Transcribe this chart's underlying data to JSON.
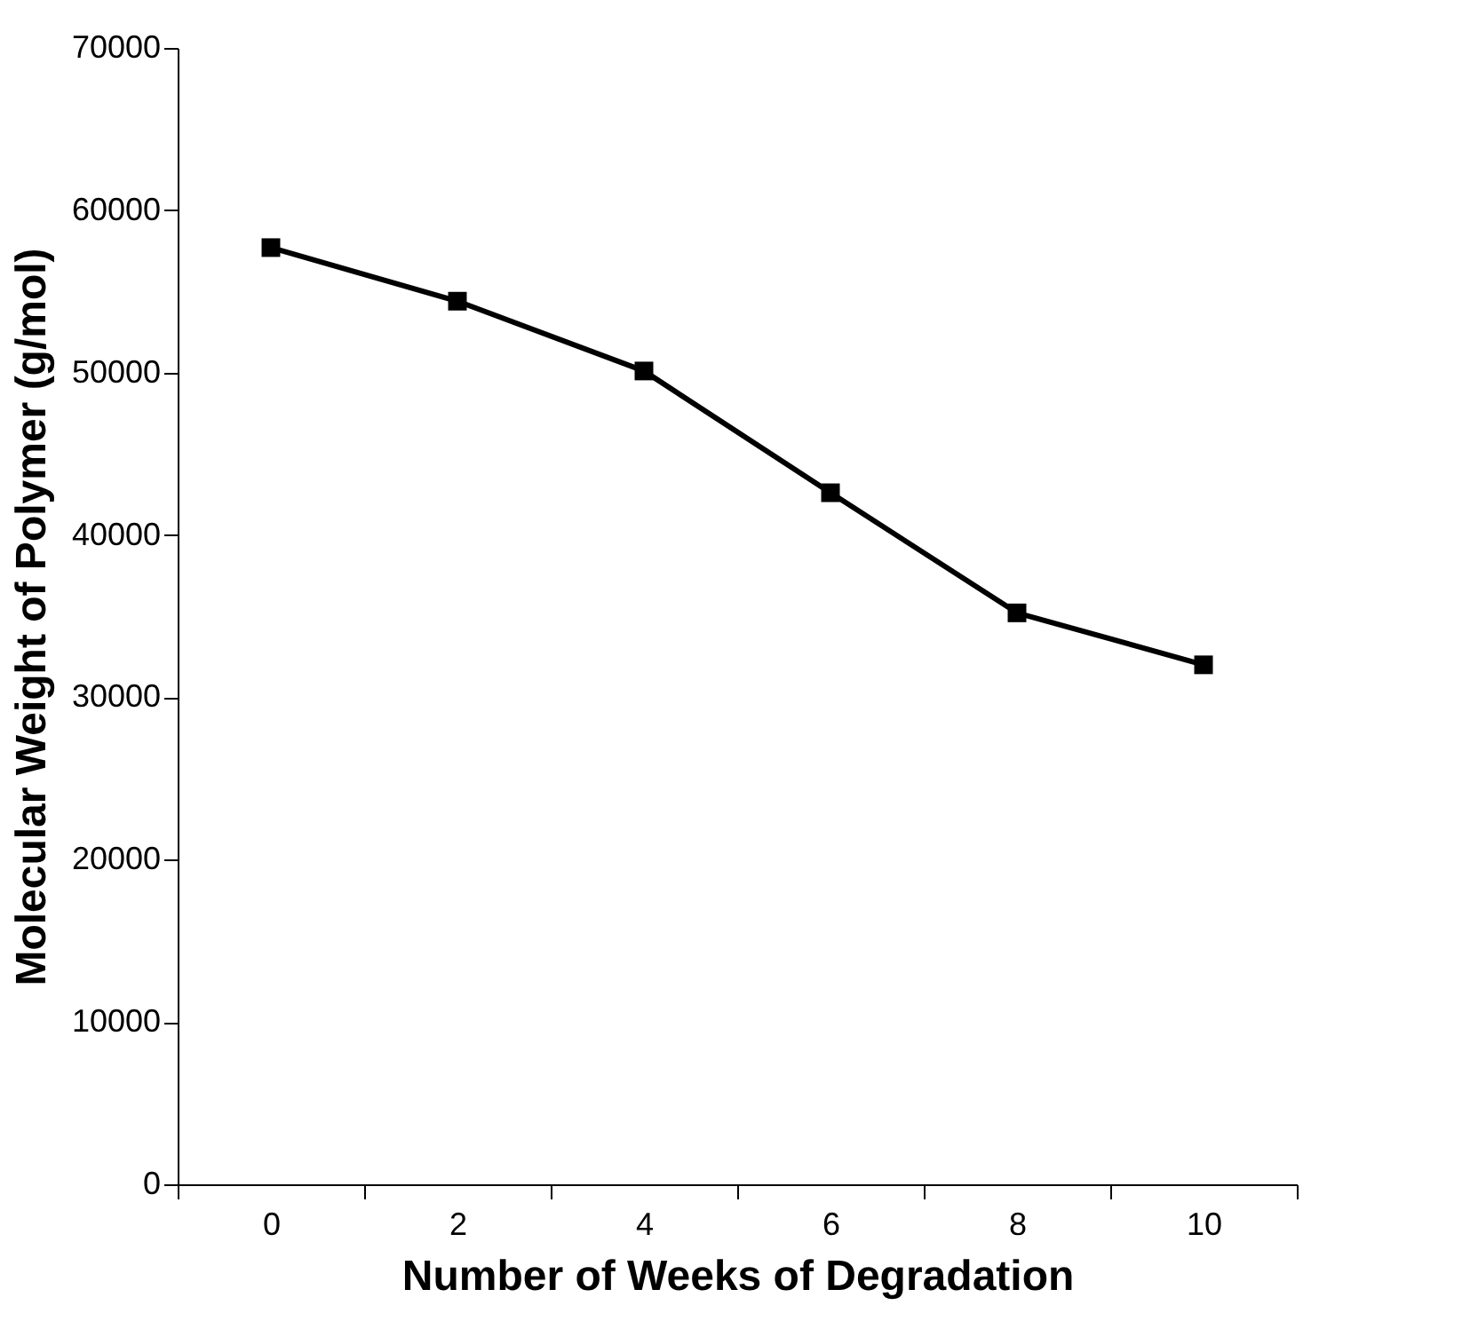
{
  "chart_data": {
    "type": "line",
    "xlabel": "Number of Weeks of Degradation",
    "ylabel": "Molecular Weight of Polymer (g/mol)",
    "categories": [
      "0",
      "2",
      "4",
      "6",
      "8",
      "10"
    ],
    "series": [
      {
        "color": "#000000",
        "values": [
          57700,
          54400,
          50100,
          42600,
          35200,
          32000
        ]
      }
    ],
    "ylim": [
      0,
      70000
    ],
    "yticks": [
      0,
      10000,
      20000,
      30000,
      40000,
      50000,
      60000,
      70000
    ],
    "grid": false,
    "legend": false,
    "marker": "square",
    "line_style": "solid"
  }
}
